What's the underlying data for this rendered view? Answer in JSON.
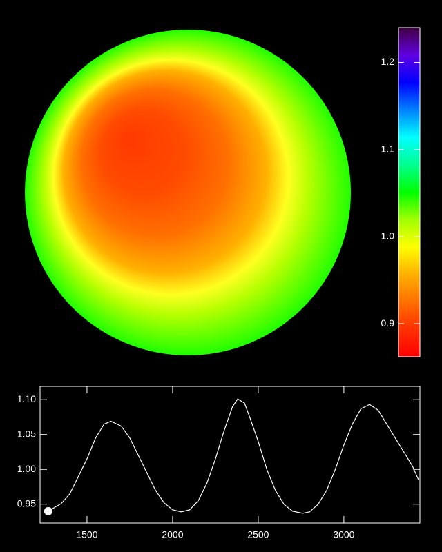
{
  "chart_data": [
    {
      "type": "colorbar",
      "colors": [
        "#ff0000",
        "#ff3000",
        "#ff7000",
        "#ffb000",
        "#ffff00",
        "#a0ff00",
        "#00ff00",
        "#00ff90",
        "#00ffff",
        "#0080ff",
        "#0000ff",
        "#6000e0",
        "#400040"
      ],
      "ylim": [
        0.862,
        1.24
      ],
      "yticks": [
        0.9,
        {
          "value": 1.0,
          "label": "1.0"
        },
        1.1,
        1.2
      ]
    },
    {
      "type": "line",
      "x": [
        1274,
        1350,
        1400,
        1450,
        1500,
        1550,
        1600,
        1640,
        1700,
        1750,
        1800,
        1850,
        1900,
        1950,
        2000,
        2050,
        2100,
        2150,
        2200,
        2250,
        2300,
        2350,
        2380,
        2420,
        2450,
        2500,
        2550,
        2600,
        2650,
        2700,
        2760,
        2800,
        2850,
        2900,
        2950,
        3000,
        3050,
        3100,
        3150,
        3200,
        3250,
        3300,
        3350,
        3400,
        3436
      ],
      "series": [
        {
          "color": "#ffffff",
          "values": [
            0.94,
            0.951,
            0.965,
            0.99,
            1.015,
            1.045,
            1.065,
            1.069,
            1.062,
            1.045,
            1.02,
            0.995,
            0.97,
            0.952,
            0.942,
            0.939,
            0.942,
            0.955,
            0.98,
            1.015,
            1.055,
            1.09,
            1.101,
            1.095,
            1.075,
            1.04,
            1.0,
            0.97,
            0.95,
            0.94,
            0.937,
            0.939,
            0.95,
            0.97,
            1.0,
            1.035,
            1.065,
            1.087,
            1.093,
            1.085,
            1.065,
            1.045,
            1.025,
            1.005,
            0.985
          ]
        }
      ],
      "marker_x": 1274,
      "marker_y": 0.94,
      "xlim": [
        1226,
        3444
      ],
      "ylim": [
        0.923,
        1.119
      ],
      "xticks": [
        1500,
        2000,
        2500,
        3000
      ],
      "yticks": [
        {
          "value": 1.1,
          "label": "1.10"
        },
        1.05,
        {
          "value": 1.0,
          "label": "1.00"
        },
        0.95
      ]
    }
  ]
}
